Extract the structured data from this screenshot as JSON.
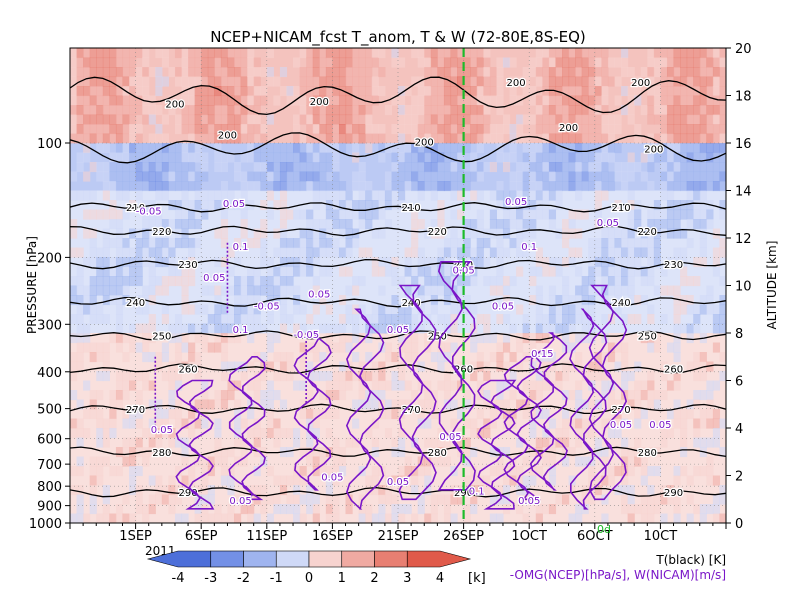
{
  "chart_data": {
    "type": "heatmap",
    "title": "NCEP+NICAM_fcst T_anom, T & W  (72-80E,8S-EQ)",
    "xlabel": "",
    "ylabel": "PRESSURE [hPa]",
    "ylabel_right": "ALTITUDE [km]",
    "year_label": "2011",
    "forecast_marker_label": "0d",
    "forecast_marker_date": "26SEP",
    "x_ticks": [
      "1SEP",
      "6SEP",
      "11SEP",
      "16SEP",
      "21SEP",
      "26SEP",
      "1OCT",
      "6OCT",
      "10CT"
    ],
    "pressure_ticks": [
      "100",
      "200",
      "300",
      "400",
      "500",
      "600",
      "700",
      "800",
      "900",
      "1000"
    ],
    "pressure_tick_values": [
      100,
      200,
      300,
      400,
      500,
      600,
      700,
      800,
      900,
      1000
    ],
    "altitude_ticks": [
      "0",
      "2",
      "4",
      "6",
      "8",
      "10",
      "12",
      "14",
      "16",
      "18",
      "20"
    ],
    "altitude_tick_values": [
      0,
      2,
      4,
      6,
      8,
      10,
      12,
      14,
      16,
      18,
      20
    ],
    "ylim_altitude_km": [
      0,
      20
    ],
    "x_range_days": [
      -5,
      45
    ],
    "colorbar": {
      "labels": [
        "-4",
        "-3",
        "-2",
        "-1",
        "0",
        "1",
        "2",
        "3",
        "4"
      ],
      "values": [
        -4,
        -3,
        -2,
        -1,
        0,
        1,
        2,
        3,
        4
      ],
      "unit": "[k]",
      "colors": [
        "#4d6fd9",
        "#7390e6",
        "#9fb4ef",
        "#cfd9f7",
        "#f7d3cf",
        "#f0aaa2",
        "#e87f72",
        "#e05a4a"
      ]
    },
    "legend": {
      "t_label": "T(black) [K]",
      "w_label": "-OMG(NCEP)[hPa/s], W(NICAM)[m/s]",
      "t_color": "#000000",
      "w_color": "#7a16c8",
      "marker_color": "#1dbb2a"
    },
    "temperature_contours": {
      "levels": [
        "210",
        "220",
        "230",
        "240",
        "250",
        "260",
        "270",
        "280",
        "290"
      ],
      "altitudes_km": [
        13.3,
        12.3,
        10.9,
        9.3,
        7.9,
        6.5,
        4.8,
        3.0,
        1.3
      ],
      "tropopause_label": "200"
    },
    "w_contour_labels": [
      "0.05",
      "0.1",
      "0.15",
      "-0.05"
    ],
    "anomaly_bands": [
      {
        "alt_top": 20,
        "alt_bottom": 16,
        "anomaly": 1.5
      },
      {
        "alt_top": 16,
        "alt_bottom": 14,
        "anomaly": -1.2
      },
      {
        "alt_top": 14,
        "alt_bottom": 8,
        "anomaly": -0.5
      },
      {
        "alt_top": 8,
        "alt_bottom": 0,
        "anomaly": 0.3
      }
    ]
  }
}
